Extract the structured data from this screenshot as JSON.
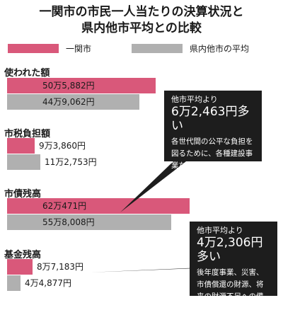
{
  "title": {
    "line1": "一関市の市民一人当たりの決算状況と",
    "line2": "県内他市平均との比較"
  },
  "legend": [
    {
      "label": "一関市",
      "color": "#d9587a"
    },
    {
      "label": "県内他市の平均",
      "color": "#b0b0b0"
    }
  ],
  "chart_data": {
    "type": "bar",
    "orientation": "horizontal",
    "unit": "円",
    "categories": [
      "使われた額",
      "市税負担額",
      "市債残高",
      "基金残高"
    ],
    "series": [
      {
        "name": "一関市",
        "color": "#d9587a",
        "values": [
          505882,
          93860,
          620471,
          87183
        ],
        "labels": [
          "50万5,882円",
          "9万3,860円",
          "62万471円",
          "8万7,183円"
        ]
      },
      {
        "name": "県内他市の平均",
        "color": "#b0b0b0",
        "values": [
          449062,
          112753,
          558008,
          44877
        ],
        "labels": [
          "44万9,062円",
          "11万2,753円",
          "55万8,008円",
          "4万4,877円"
        ]
      }
    ]
  },
  "callouts": [
    {
      "head": "他市平均より",
      "amount": "6万2,463円多い",
      "body": "各世代間の公平な負担を図るために、各種建設事業などを市債を充当して進めてきた"
    },
    {
      "head": "他市平均より",
      "amount": "4万2,306円多い",
      "body": "後年度事業、災害、市債償還の財源、将来の財源不足への備えとして基金に積み立ててきた"
    }
  ]
}
